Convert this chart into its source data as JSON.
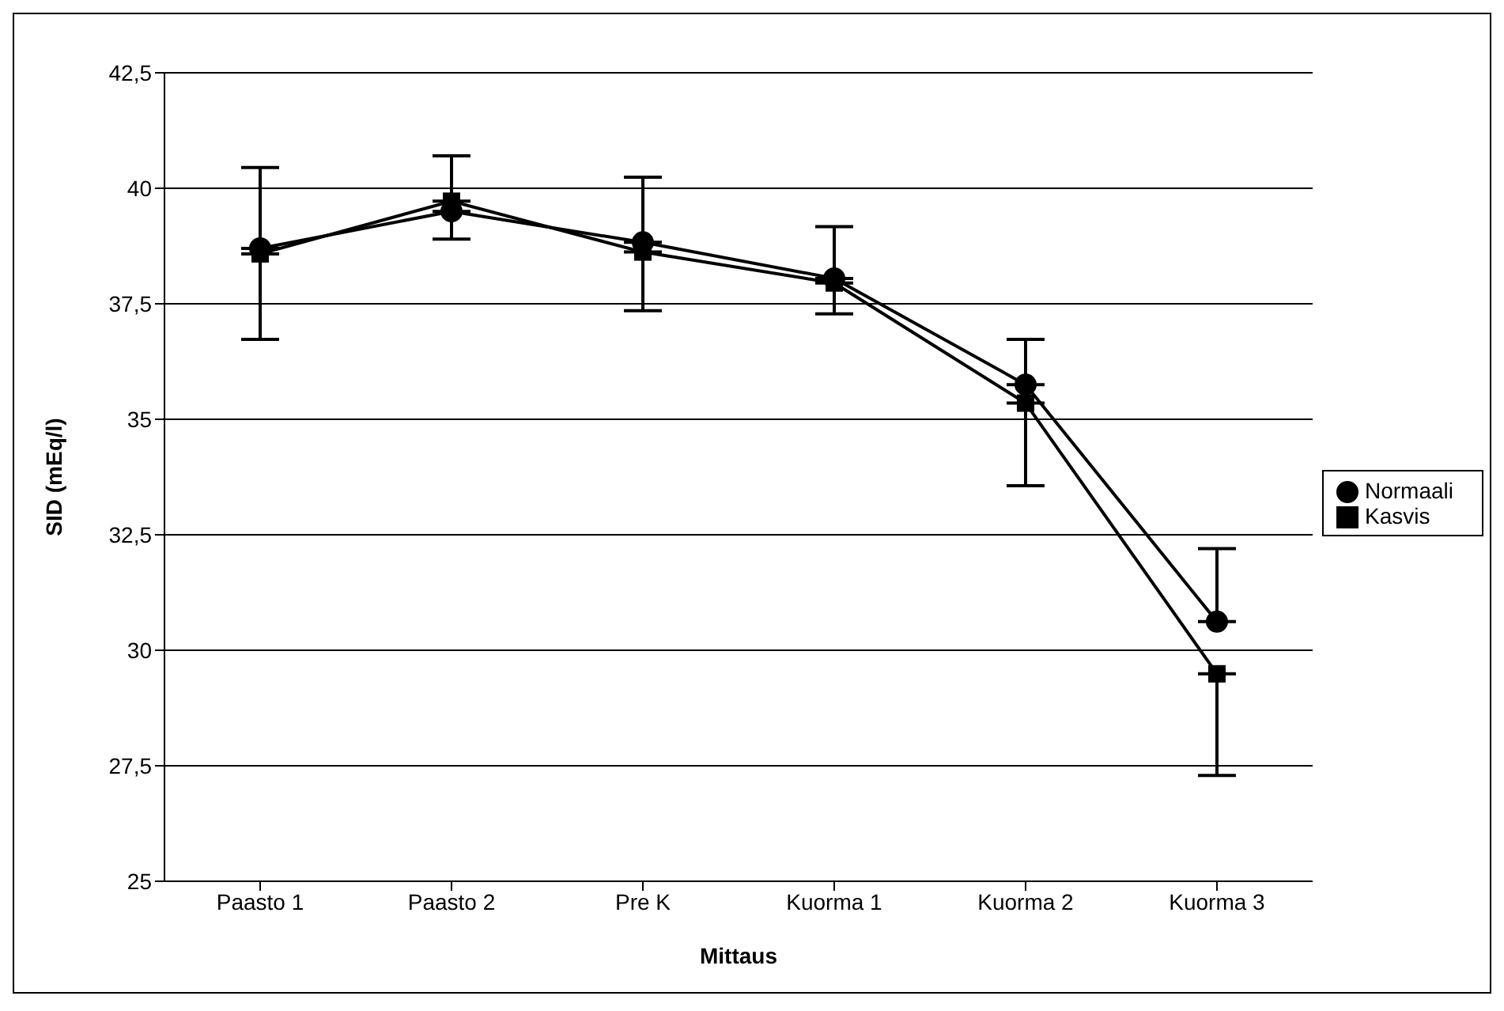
{
  "chart_data": {
    "type": "line",
    "xlabel": "Mittaus",
    "ylabel": "SID (mEq/l)",
    "categories": [
      "Paasto 1",
      "Paasto 2",
      "Pre K",
      "Kuorma 1",
      "Kuorma 2",
      "Kuorma 3"
    ],
    "series": [
      {
        "name": "Normaali",
        "color": "#000000",
        "marker": "circle",
        "values": [
          38.7,
          39.5,
          38.83,
          38.05,
          35.75,
          30.62
        ],
        "errors": [
          [
            38.7,
            40.45
          ],
          [
            39.5,
            40.7
          ],
          [
            38.83,
            40.24
          ],
          [
            38.05,
            39.17
          ],
          [
            35.75,
            36.73
          ],
          [
            30.62,
            32.2
          ]
        ]
      },
      {
        "name": "Kasvis",
        "color": "#000000",
        "marker": "square",
        "values": [
          38.58,
          39.72,
          38.62,
          37.95,
          35.35,
          29.49
        ],
        "errors": [
          [
            36.73,
            38.58
          ],
          [
            38.9,
            39.72
          ],
          [
            37.35,
            38.62
          ],
          [
            37.28,
            37.95
          ],
          [
            33.56,
            35.35
          ],
          [
            27.29,
            29.49
          ]
        ]
      }
    ],
    "ylim": [
      25,
      42.5
    ],
    "yticks": [
      25,
      {
        "value": 27.5,
        "label": "27,5"
      },
      30,
      {
        "value": 32.5,
        "label": "32,5"
      },
      35,
      {
        "value": 37.5,
        "label": "37,5"
      },
      40,
      {
        "value": 42.5,
        "label": "42,5"
      }
    ],
    "grid": "y",
    "legend": "right",
    "line_style": "solid"
  }
}
